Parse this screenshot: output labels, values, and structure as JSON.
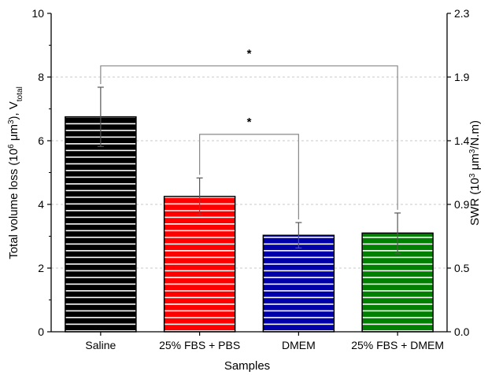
{
  "chart_data": {
    "type": "bar",
    "categories": [
      "Saline",
      "25% FBS + PBS",
      "DMEM",
      "25% FBS + DMEM"
    ],
    "values": [
      6.75,
      4.25,
      3.03,
      3.1
    ],
    "errors": [
      0.93,
      0.58,
      0.4,
      0.63
    ],
    "colors": [
      "#000000",
      "#ff0000",
      "#0000aa",
      "#008000"
    ],
    "stripe_color": "#ffffff",
    "xlabel": "Samples",
    "ylabel": "Total volume loss (10",
    "ylabel_sup": "6",
    "ylabel_mid": " μm",
    "ylabel_sup2": "3",
    "ylabel_end": "), V",
    "ylabel_sub": "total",
    "y2label": "SWR (10",
    "y2label_sup": "3",
    "y2label_mid": " μm",
    "y2label_sup2": "3",
    "y2label_end": "/N.m)",
    "ylim": [
      0,
      10
    ],
    "yticks": [
      0,
      2,
      4,
      6,
      8,
      10
    ],
    "y2ticks": [
      "0.0",
      "0.5",
      "0.9",
      "1.4",
      "1.9",
      "2.3"
    ],
    "grid": "dashed horizontal",
    "significance": [
      {
        "from": 0,
        "to": 3,
        "label": "*",
        "level": 8.35
      },
      {
        "from": 1,
        "to": 2,
        "label": "*",
        "level": 6.2
      }
    ]
  }
}
